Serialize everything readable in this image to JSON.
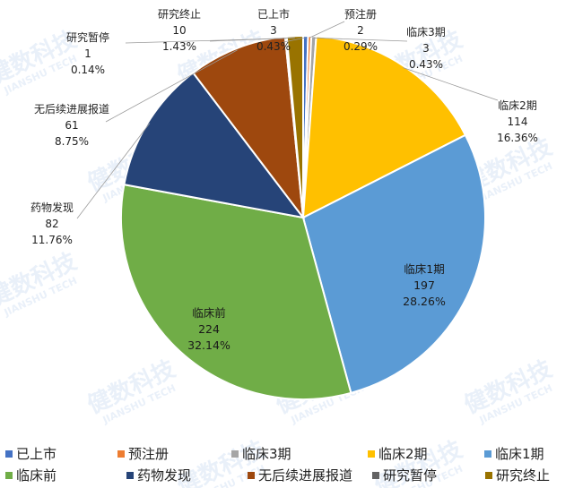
{
  "chart_data": {
    "type": "pie",
    "title": "",
    "slices": [
      {
        "name": "已上市",
        "value": 3,
        "percent": "0.43%",
        "color": "#4472C4"
      },
      {
        "name": "预注册",
        "value": 2,
        "percent": "0.29%",
        "color": "#ED7D31"
      },
      {
        "name": "临床3期",
        "value": 3,
        "percent": "0.43%",
        "color": "#A5A5A5"
      },
      {
        "name": "临床2期",
        "value": 114,
        "percent": "16.36%",
        "color": "#FFC000"
      },
      {
        "name": "临床1期",
        "value": 197,
        "percent": "28.26%",
        "color": "#5B9BD5"
      },
      {
        "name": "临床前",
        "value": 224,
        "percent": "32.14%",
        "color": "#70AD47"
      },
      {
        "name": "药物发现",
        "value": 82,
        "percent": "11.76%",
        "color": "#264478"
      },
      {
        "name": "无后续进展报道",
        "value": 61,
        "percent": "8.75%",
        "color": "#9E480E"
      },
      {
        "name": "研究暂停",
        "value": 1,
        "percent": "0.14%",
        "color": "#636363"
      },
      {
        "name": "研究终止",
        "value": 10,
        "percent": "1.43%",
        "color": "#997300"
      }
    ],
    "legend_position": "bottom"
  },
  "watermark": {
    "line1": "健数科技",
    "line2": "JIANSHU TECH"
  }
}
